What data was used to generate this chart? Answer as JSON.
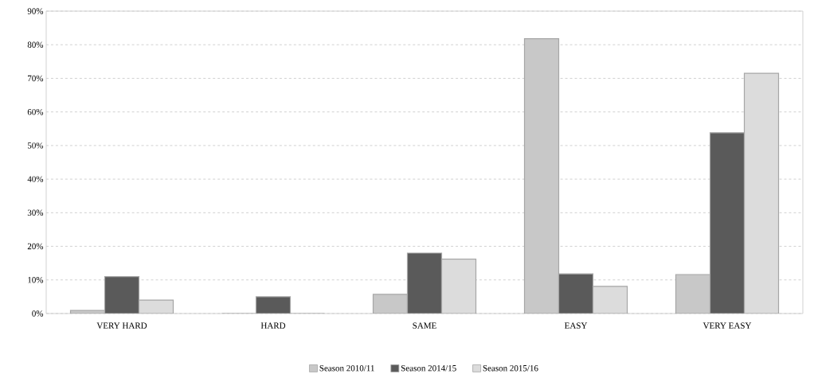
{
  "chart_data": {
    "type": "bar",
    "categories": [
      "VERY HARD",
      "HARD",
      "SAME",
      "EASY",
      "VERY EASY"
    ],
    "series": [
      {
        "name": "Season 2010/11",
        "color": "#c8c8c8",
        "values": [
          0.9,
          0,
          5.7,
          81.8,
          11.6
        ]
      },
      {
        "name": "Season 2014/15",
        "color": "#5a5a5a",
        "values": [
          11,
          5,
          18,
          11.8,
          53.8
        ]
      },
      {
        "name": "Season 2015/16",
        "color": "#dcdcdc",
        "values": [
          4,
          0,
          16.2,
          8.1,
          71.5
        ]
      }
    ],
    "ylim": [
      0,
      90
    ],
    "yticks": [
      {
        "value": 0,
        "label": "0%"
      },
      {
        "value": 10,
        "label": "10%"
      },
      {
        "value": 20,
        "label": "20%"
      },
      {
        "value": 30,
        "label": "30%"
      },
      {
        "value": 40,
        "label": "40%"
      },
      {
        "value": 50,
        "label": "50%"
      },
      {
        "value": 60,
        "label": "60%"
      },
      {
        "value": 70,
        "label": "70%"
      },
      {
        "value": 80,
        "label": "80%"
      },
      {
        "value": 90,
        "label": "90%"
      }
    ],
    "grid": "y",
    "legend": "bottom"
  }
}
